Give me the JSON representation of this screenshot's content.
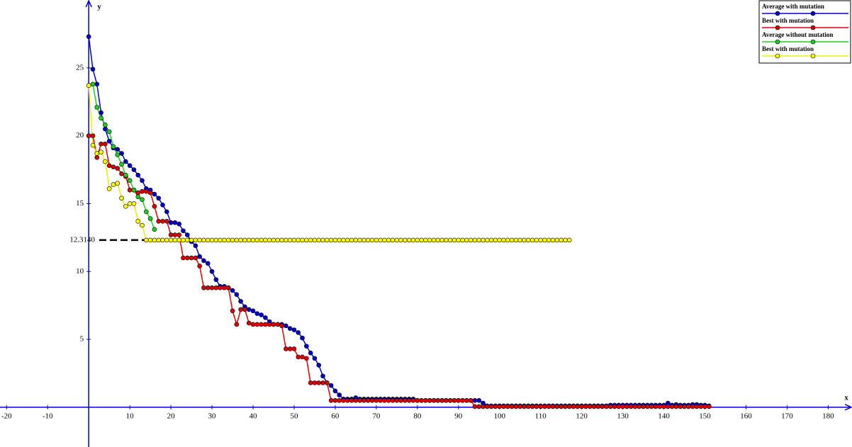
{
  "chart_data": {
    "type": "line",
    "x_label": "x",
    "y_label": "y",
    "xlim": [
      -21.6,
      185.8
    ],
    "ylim": [
      -2.93,
      30.0
    ],
    "xticks": [
      -20,
      -10,
      10,
      20,
      30,
      40,
      50,
      60,
      70,
      80,
      90,
      100,
      110,
      120,
      130,
      140,
      150,
      160,
      170,
      180
    ],
    "yticks": [
      5,
      10,
      15,
      20,
      25
    ],
    "annotation": {
      "value": 12.314,
      "label": "12.3140"
    },
    "legend": "top-right",
    "x": [
      0,
      1,
      2,
      3,
      4,
      5,
      6,
      7,
      8,
      9,
      10,
      11,
      12,
      13,
      14,
      15,
      16,
      17,
      18,
      19,
      20,
      21,
      22,
      23,
      24,
      25,
      26,
      27,
      28,
      29,
      30,
      31,
      32,
      33,
      34,
      35,
      36,
      37,
      38,
      39,
      40,
      41,
      42,
      43,
      44,
      45,
      46,
      47,
      48,
      49,
      50,
      51,
      52,
      53,
      54,
      55,
      56,
      57,
      58,
      59,
      60,
      61,
      62,
      63,
      64,
      65,
      66,
      67,
      68,
      69,
      70,
      71,
      72,
      73,
      74,
      75,
      76,
      77,
      78,
      79,
      80,
      81,
      82,
      83,
      84,
      85,
      86,
      87,
      88,
      89,
      90,
      91,
      92,
      93,
      94,
      95,
      96,
      97,
      98,
      99,
      100,
      101,
      102,
      103,
      104,
      105,
      106,
      107,
      108,
      109,
      110,
      111,
      112,
      113,
      114,
      115,
      116,
      117,
      118,
      119,
      120,
      121,
      122,
      123,
      124,
      125,
      126,
      127,
      128,
      129,
      130,
      131,
      132,
      133,
      134,
      135,
      136,
      137,
      138,
      139,
      140,
      141,
      142,
      143,
      144,
      145,
      146,
      147,
      148,
      149,
      150,
      151
    ],
    "series": [
      {
        "name": "Average with mutation",
        "color": "#0000cc",
        "values": [
          27.3,
          24.9,
          23.8,
          21.7,
          20.5,
          19.6,
          19.1,
          19.0,
          18.7,
          18.1,
          17.8,
          17.5,
          17.1,
          16.7,
          16.1,
          16.0,
          15.7,
          15.4,
          14.9,
          14.4,
          13.6,
          13.6,
          13.5,
          13.0,
          12.7,
          12.2,
          11.9,
          11.1,
          10.8,
          10.6,
          10.0,
          9.4,
          8.9,
          8.9,
          8.8,
          8.6,
          8.3,
          7.8,
          7.4,
          7.2,
          7.1,
          6.9,
          6.8,
          6.6,
          6.3,
          6.1,
          6.1,
          6.1,
          6.0,
          5.8,
          5.7,
          5.5,
          5.1,
          4.5,
          4.0,
          3.6,
          3.1,
          2.3,
          1.8,
          1.6,
          1.2,
          0.9,
          0.6,
          0.6,
          0.6,
          0.7,
          0.6,
          0.6,
          0.6,
          0.6,
          0.6,
          0.6,
          0.6,
          0.6,
          0.6,
          0.6,
          0.6,
          0.6,
          0.6,
          0.6,
          0.5,
          0.5,
          0.5,
          0.5,
          0.5,
          0.5,
          0.5,
          0.5,
          0.5,
          0.5,
          0.5,
          0.5,
          0.5,
          0.5,
          0.5,
          0.5,
          0.3,
          0.1,
          0.1,
          0.1,
          0.1,
          0.1,
          0.1,
          0.1,
          0.1,
          0.1,
          0.1,
          0.1,
          0.1,
          0.1,
          0.1,
          0.1,
          0.1,
          0.1,
          0.1,
          0.1,
          0.1,
          0.1,
          0.1,
          0.1,
          0.1,
          0.1,
          0.1,
          0.1,
          0.1,
          0.1,
          0.1,
          0.15,
          0.15,
          0.15,
          0.15,
          0.15,
          0.15,
          0.15,
          0.15,
          0.15,
          0.15,
          0.15,
          0.15,
          0.15,
          0.15,
          0.3,
          0.15,
          0.2,
          0.15,
          0.15,
          0.15,
          0.2,
          0.2,
          0.15,
          0.15,
          0.1
        ]
      },
      {
        "name": "Best with mutation",
        "color": "#dd0000",
        "values": [
          20.0,
          20.0,
          18.4,
          19.4,
          19.4,
          17.8,
          17.7,
          17.6,
          17.2,
          17.0,
          16.0,
          16.0,
          15.8,
          15.9,
          15.9,
          15.8,
          14.8,
          13.7,
          13.7,
          13.7,
          12.7,
          12.7,
          12.7,
          11.0,
          11.0,
          11.0,
          11.0,
          10.4,
          8.8,
          8.8,
          8.8,
          8.8,
          8.8,
          8.8,
          8.8,
          7.1,
          6.1,
          7.2,
          7.2,
          6.2,
          6.1,
          6.1,
          6.1,
          6.1,
          6.1,
          6.1,
          6.1,
          6.0,
          4.3,
          4.3,
          4.3,
          3.7,
          3.7,
          3.6,
          1.8,
          1.8,
          1.8,
          1.8,
          1.8,
          0.5,
          0.5,
          0.5,
          0.5,
          0.5,
          0.5,
          0.5,
          0.5,
          0.5,
          0.5,
          0.5,
          0.5,
          0.5,
          0.5,
          0.5,
          0.5,
          0.5,
          0.5,
          0.5,
          0.5,
          0.5,
          0.5,
          0.5,
          0.5,
          0.5,
          0.5,
          0.5,
          0.5,
          0.5,
          0.5,
          0.5,
          0.5,
          0.5,
          0.5,
          0.5,
          0.05,
          0.05,
          0.05,
          0.05,
          0.05,
          0.05,
          0.05,
          0.05,
          0.05,
          0.05,
          0.05,
          0.05,
          0.05,
          0.05,
          0.05,
          0.05,
          0.05,
          0.05,
          0.05,
          0.05,
          0.05,
          0.05,
          0.05,
          0.05,
          0.05,
          0.05,
          0.05,
          0.05,
          0.05,
          0.05,
          0.05,
          0.05,
          0.05,
          0.05,
          0.05,
          0.05,
          0.05,
          0.05,
          0.05,
          0.05,
          0.05,
          0.05,
          0.05,
          0.05,
          0.05,
          0.05,
          0.05,
          0.05,
          0.05,
          0.05,
          0.05,
          0.05,
          0.05,
          0.05,
          0.05,
          0.05,
          0.05,
          0.05
        ]
      },
      {
        "name": "Average without mutation",
        "color": "#22cc22",
        "values": [
          23.7,
          23.8,
          22.1,
          21.3,
          20.8,
          20.3,
          19.2,
          18.6,
          17.9,
          17.1,
          16.7,
          16.0,
          15.5,
          15.3,
          14.4,
          13.9,
          13.1,
          null,
          null,
          null,
          null,
          null,
          null,
          null,
          null,
          null,
          null,
          null,
          null,
          null,
          null,
          null,
          null,
          null,
          null,
          null,
          null,
          null,
          null,
          null,
          null,
          null,
          null,
          null,
          null,
          null,
          null,
          null,
          null,
          null,
          null,
          null,
          null,
          null,
          null,
          null,
          null,
          null,
          null,
          null,
          null,
          null,
          null,
          null,
          null,
          null,
          null,
          null,
          null,
          null,
          null,
          null,
          null,
          null,
          null,
          null,
          null,
          null,
          null,
          null,
          null,
          null,
          null,
          null,
          null,
          null,
          null,
          null,
          null,
          null,
          null,
          null,
          null,
          null,
          null,
          null,
          null,
          null,
          null,
          null,
          null,
          null,
          null,
          null,
          null,
          null,
          null,
          null,
          null,
          null,
          null,
          null,
          null,
          null,
          null,
          null,
          null,
          null,
          null,
          null,
          null,
          null,
          null,
          null,
          null,
          null,
          null,
          null,
          null,
          null,
          null,
          null,
          null,
          null,
          null,
          null,
          null,
          null,
          null,
          null,
          null,
          null,
          null,
          null,
          null,
          null,
          null,
          null,
          null,
          null,
          null,
          null
        ]
      },
      {
        "name": "Best with mutation",
        "color": "#ffff00",
        "values": [
          23.7,
          19.3,
          18.7,
          18.8,
          18.1,
          16.1,
          16.4,
          16.5,
          15.4,
          14.8,
          15.0,
          15.0,
          13.7,
          13.4,
          12.314,
          12.314,
          12.314,
          12.314,
          12.314,
          12.314,
          12.314,
          12.314,
          12.314,
          12.314,
          12.314,
          12.314,
          12.314,
          12.314,
          12.314,
          12.314,
          12.314,
          12.314,
          12.314,
          12.314,
          12.314,
          12.314,
          12.314,
          12.314,
          12.314,
          12.314,
          12.314,
          12.314,
          12.314,
          12.314,
          12.314,
          12.314,
          12.314,
          12.314,
          12.314,
          12.314,
          12.314,
          12.314,
          12.314,
          12.314,
          12.314,
          12.314,
          12.314,
          12.314,
          12.314,
          12.314,
          12.314,
          12.314,
          12.314,
          12.314,
          12.314,
          12.314,
          12.314,
          12.314,
          12.314,
          12.314,
          12.314,
          12.314,
          12.314,
          12.314,
          12.314,
          12.314,
          12.314,
          12.314,
          12.314,
          12.314,
          12.314,
          12.314,
          12.314,
          12.314,
          12.314,
          12.314,
          12.314,
          12.314,
          12.314,
          12.314,
          12.314,
          12.314,
          12.314,
          12.314,
          12.314,
          12.314,
          12.314,
          12.314,
          12.314,
          12.314,
          12.314,
          12.314,
          12.314,
          12.314,
          12.314,
          12.314,
          12.314,
          12.314,
          12.314,
          12.314,
          12.314,
          12.314,
          12.314,
          12.314,
          12.314,
          12.314,
          12.314,
          12.314,
          null,
          null,
          null,
          null,
          null,
          null,
          null,
          null,
          null,
          null,
          null,
          null,
          null,
          null,
          null,
          null,
          null,
          null,
          null,
          null,
          null,
          null,
          null,
          null,
          null,
          null,
          null,
          null,
          null,
          null,
          null,
          null,
          null,
          null
        ]
      }
    ]
  }
}
